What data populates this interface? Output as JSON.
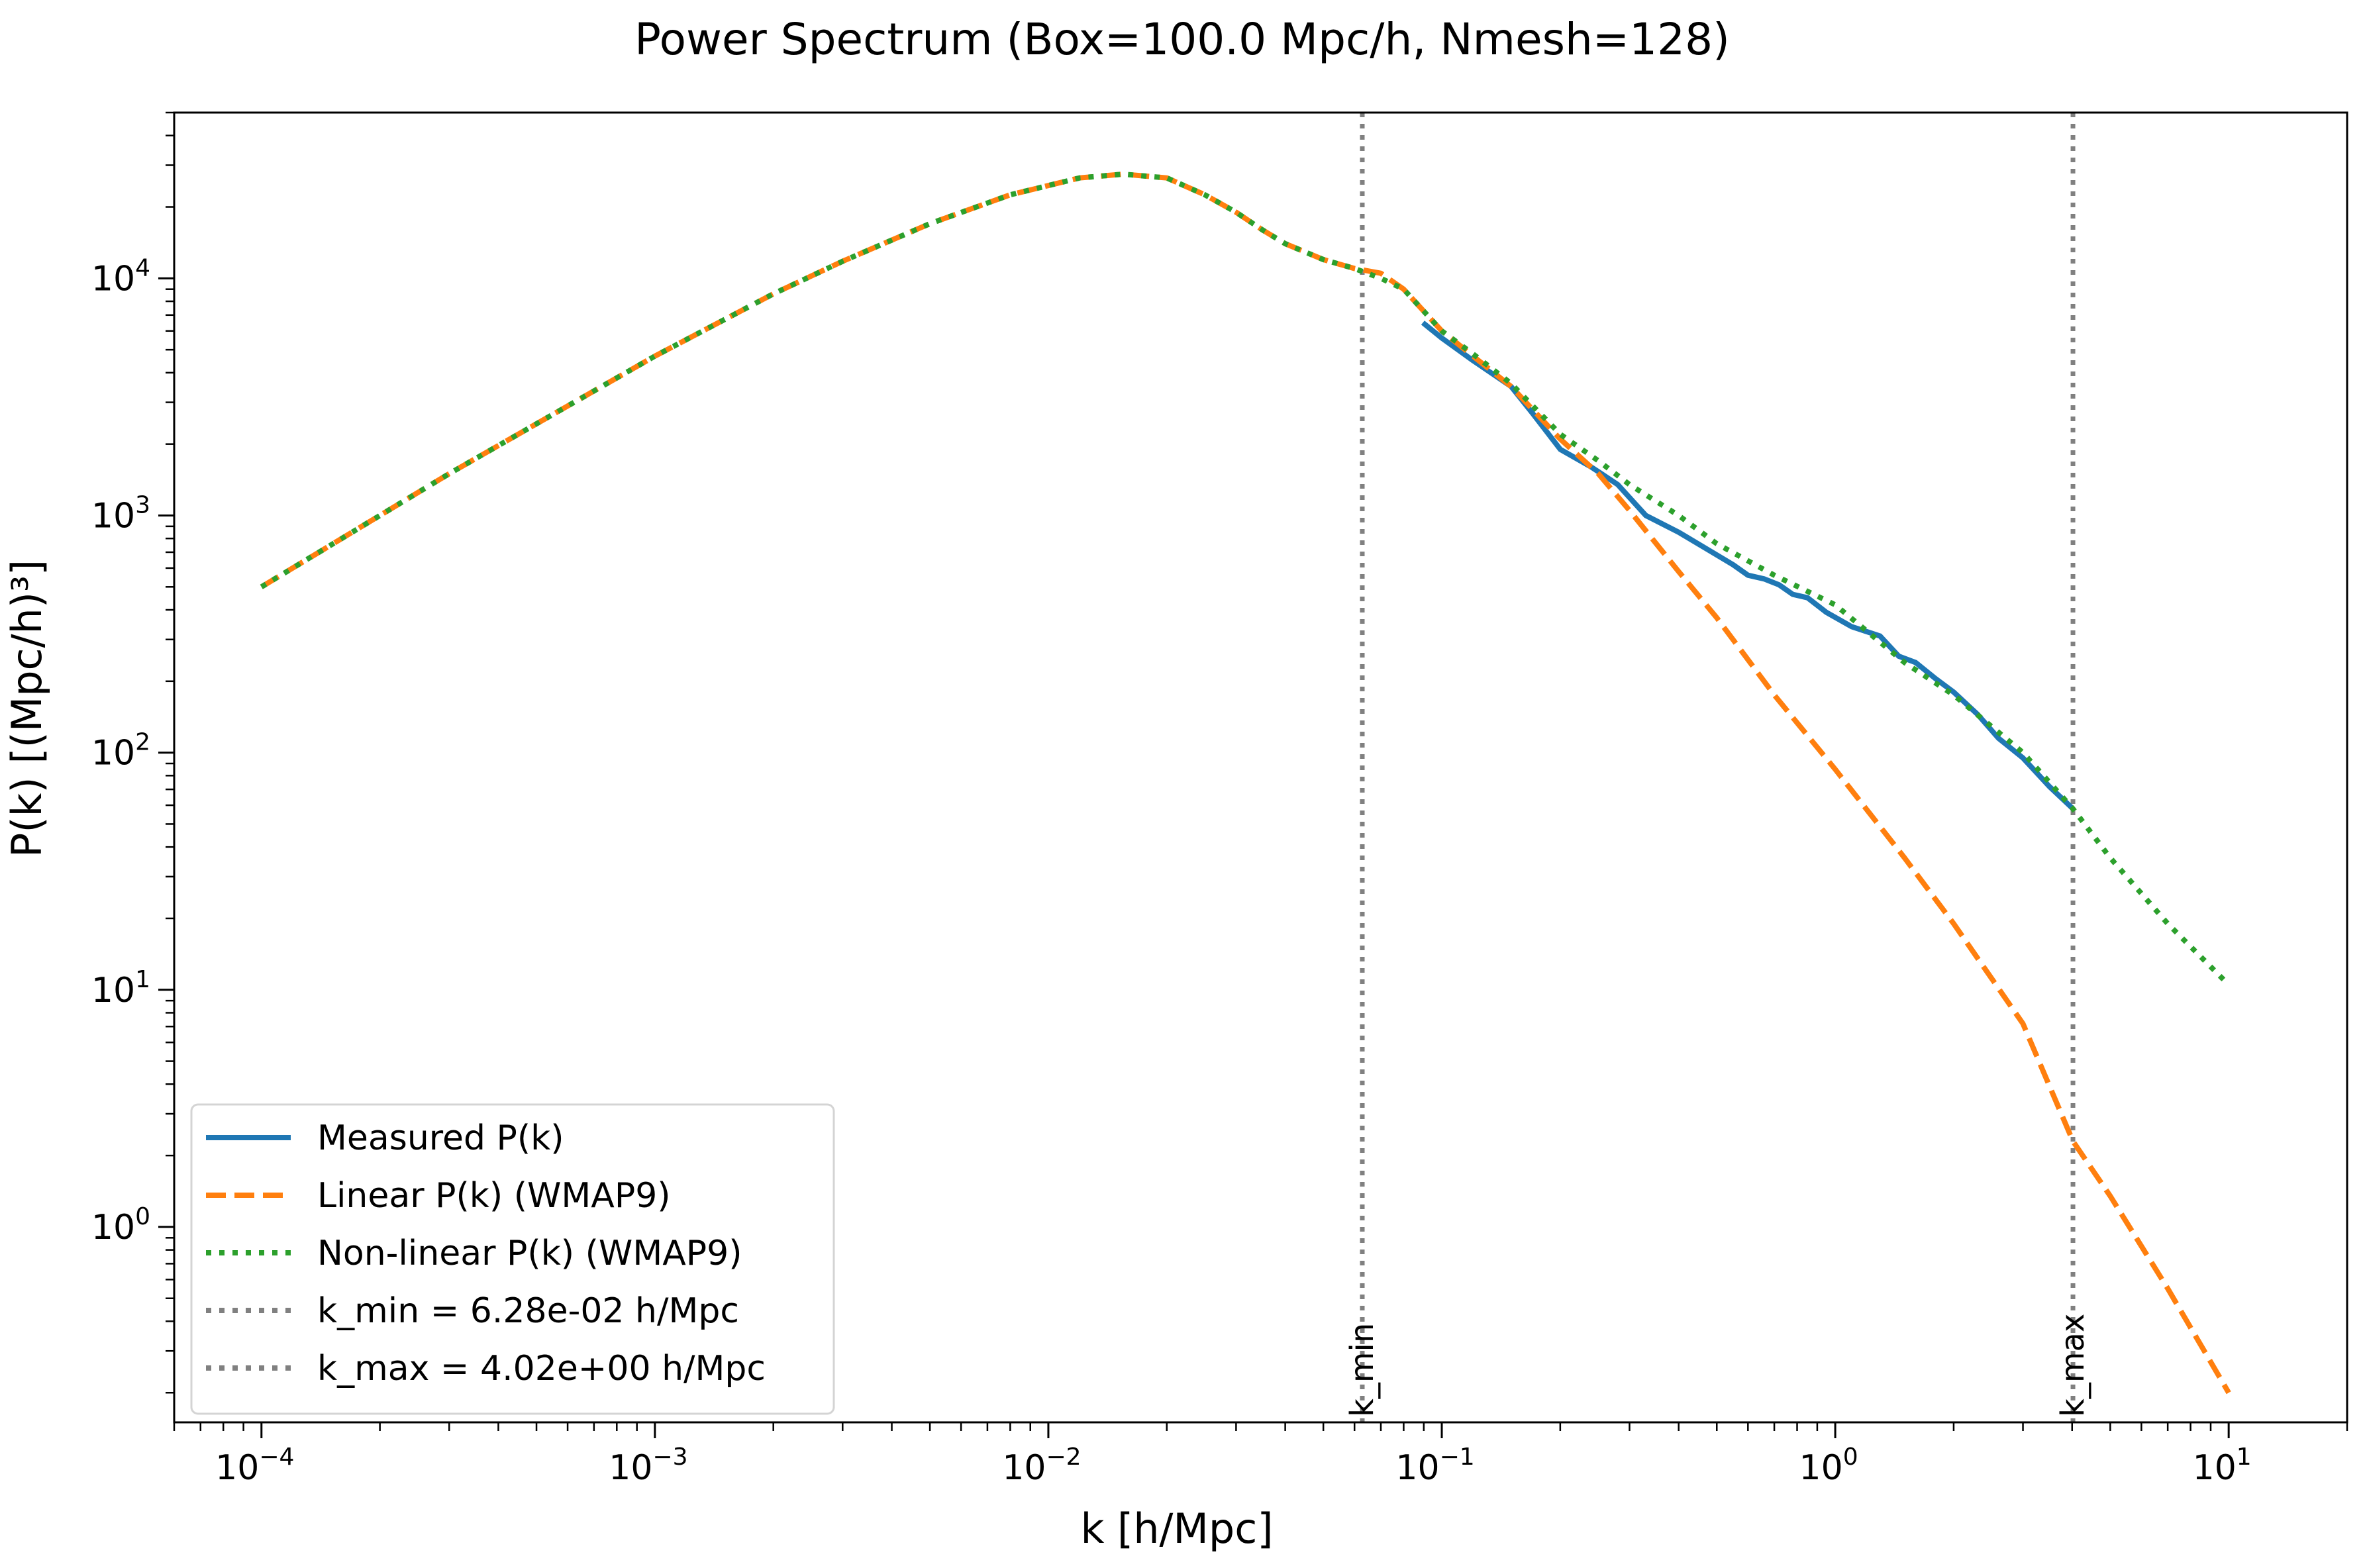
{
  "chart_data": {
    "type": "line",
    "title": "Power Spectrum (Box=100.0 Mpc/h, Nmesh=128)",
    "xlabel": "k [h/Mpc]",
    "ylabel": "P(k) [(Mpc/h)³]",
    "xscale": "log",
    "yscale": "log",
    "xlim": [
      6e-05,
      20
    ],
    "ylim": [
      0.15,
      50000
    ],
    "x_ticks": [
      {
        "value": 0.0001,
        "base": "10",
        "exp": "−4"
      },
      {
        "value": 0.001,
        "base": "10",
        "exp": "−3"
      },
      {
        "value": 0.01,
        "base": "10",
        "exp": "−2"
      },
      {
        "value": 0.1,
        "base": "10",
        "exp": "−1"
      },
      {
        "value": 1,
        "base": "10",
        "exp": "0"
      },
      {
        "value": 10,
        "base": "10",
        "exp": "1"
      }
    ],
    "y_ticks": [
      {
        "value": 1,
        "base": "10",
        "exp": "0"
      },
      {
        "value": 10,
        "base": "10",
        "exp": "1"
      },
      {
        "value": 100,
        "base": "10",
        "exp": "2"
      },
      {
        "value": 1000,
        "base": "10",
        "exp": "3"
      },
      {
        "value": 10000,
        "base": "10",
        "exp": "4"
      }
    ],
    "grid": false,
    "legend_position": "lower-left",
    "series": [
      {
        "name": "Measured P(k)",
        "color": "#1f77b4",
        "style": "solid",
        "x": [
          0.0895,
          0.1,
          0.12,
          0.15,
          0.17,
          0.2,
          0.24,
          0.28,
          0.33,
          0.4,
          0.48,
          0.55,
          0.6,
          0.66,
          0.72,
          0.78,
          0.85,
          0.95,
          1.1,
          1.3,
          1.45,
          1.6,
          1.8,
          2.0,
          2.3,
          2.6,
          3.0,
          3.5,
          4.02
        ],
        "y": [
          6500,
          5600,
          4500,
          3500,
          2700,
          1900,
          1600,
          1350,
          1000,
          850,
          710,
          620,
          560,
          540,
          510,
          465,
          450,
          390,
          340,
          310,
          255,
          240,
          205,
          180,
          145,
          115,
          95,
          72,
          58
        ]
      },
      {
        "name": "Linear P(k) (WMAP9)",
        "color": "#ff7f0e",
        "style": "dashed",
        "x": [
          0.0001,
          0.0003,
          0.001,
          0.002,
          0.003,
          0.005,
          0.008,
          0.012,
          0.0155,
          0.02,
          0.025,
          0.03,
          0.035,
          0.04,
          0.05,
          0.06,
          0.07,
          0.08,
          0.1,
          0.12,
          0.15,
          0.2,
          0.25,
          0.3,
          0.4,
          0.5,
          0.7,
          1.0,
          1.5,
          2.0,
          3.0,
          4.02,
          5.0,
          7.0,
          10.0
        ],
        "y": [
          500,
          1500,
          4700,
          8600,
          11800,
          17000,
          22500,
          26500,
          27500,
          26500,
          22500,
          19000,
          16000,
          14000,
          12000,
          11000,
          10500,
          9000,
          6000,
          4700,
          3500,
          2100,
          1500,
          1050,
          580,
          370,
          175,
          85,
          36,
          19,
          7.2,
          2.3,
          1.35,
          0.55,
          0.2
        ]
      },
      {
        "name": "Non-linear P(k) (WMAP9)",
        "color": "#2ca02c",
        "style": "dotted",
        "x": [
          0.0001,
          0.0003,
          0.001,
          0.002,
          0.003,
          0.005,
          0.008,
          0.012,
          0.0155,
          0.02,
          0.025,
          0.03,
          0.035,
          0.04,
          0.05,
          0.06,
          0.07,
          0.08,
          0.1,
          0.12,
          0.15,
          0.2,
          0.25,
          0.3,
          0.4,
          0.5,
          0.7,
          1.0,
          1.5,
          2.0,
          3.0,
          4.02,
          5.0,
          7.0,
          10.0
        ],
        "y": [
          500,
          1500,
          4700,
          8600,
          11800,
          17000,
          22500,
          26500,
          27500,
          26500,
          22500,
          19000,
          16000,
          14000,
          12000,
          11000,
          10000,
          9000,
          6000,
          4800,
          3600,
          2200,
          1700,
          1350,
          1000,
          760,
          560,
          420,
          240,
          175,
          100,
          58,
          36,
          19,
          10.5
        ]
      }
    ],
    "vlines": [
      {
        "name": "k_min = 6.28e-02 h/Mpc",
        "label": "k_min",
        "x": 0.0628,
        "color": "#808080",
        "style": "dotted"
      },
      {
        "name": "k_max = 4.02e+00 h/Mpc",
        "label": "k_max",
        "x": 4.02,
        "color": "#808080",
        "style": "dotted"
      }
    ]
  }
}
